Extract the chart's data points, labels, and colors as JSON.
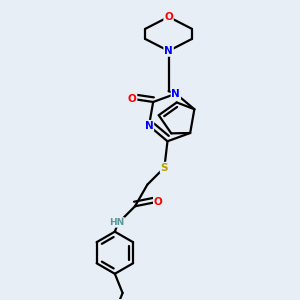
{
  "bg_color": "#e8eef5",
  "atom_colors": {
    "N": "#0000ff",
    "O": "#ff0000",
    "S": "#b8a000",
    "H": "#5a9898",
    "C": "#000000"
  },
  "bond_color": "#000000",
  "bond_width": 1.6,
  "figsize": [
    3.0,
    3.0
  ],
  "dpi": 100
}
